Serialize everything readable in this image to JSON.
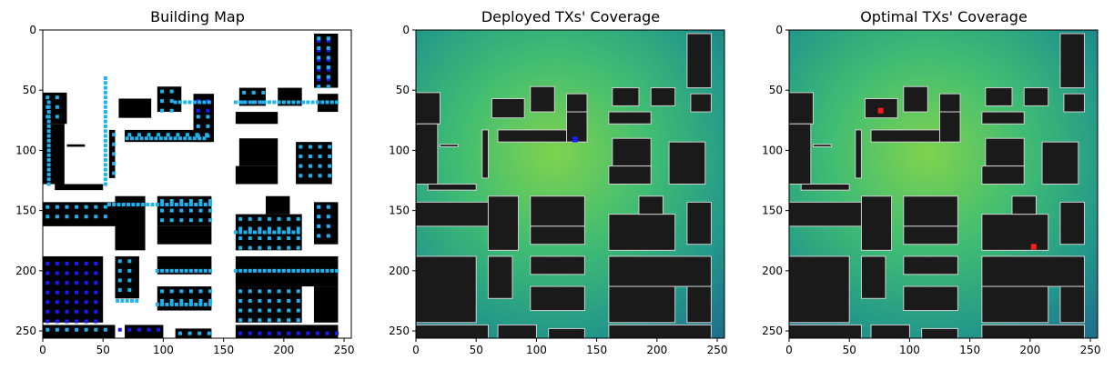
{
  "chart_data": [
    {
      "type": "heatmap",
      "title": "Building Map",
      "xlim": [
        0,
        256
      ],
      "ylim": [
        256,
        0
      ],
      "xticks": [
        0,
        50,
        100,
        150,
        200,
        250
      ],
      "yticks": [
        0,
        50,
        100,
        150,
        200,
        250
      ],
      "background_color": "#ffffff",
      "building_color": "#000000",
      "marker_colors": {
        "edge_candidates": "#1fb3f0",
        "roof_candidates": "#1a1aff"
      },
      "buildings": [
        [
          0,
          52,
          20,
          78
        ],
        [
          0,
          78,
          18,
          128
        ],
        [
          20,
          95,
          35,
          97
        ],
        [
          63,
          57,
          90,
          73
        ],
        [
          95,
          47,
          115,
          68
        ],
        [
          125,
          53,
          142,
          68
        ],
        [
          163,
          48,
          185,
          63
        ],
        [
          195,
          48,
          215,
          63
        ],
        [
          225,
          3,
          245,
          48
        ],
        [
          228,
          53,
          245,
          68
        ],
        [
          68,
          83,
          140,
          93
        ],
        [
          160,
          68,
          195,
          78
        ],
        [
          125,
          68,
          142,
          93
        ],
        [
          163,
          90,
          195,
          113
        ],
        [
          210,
          93,
          240,
          128
        ],
        [
          160,
          113,
          195,
          128
        ],
        [
          55,
          83,
          60,
          123
        ],
        [
          10,
          128,
          50,
          133
        ],
        [
          0,
          143,
          60,
          163
        ],
        [
          60,
          138,
          85,
          183
        ],
        [
          95,
          138,
          140,
          163
        ],
        [
          95,
          163,
          140,
          178
        ],
        [
          160,
          153,
          215,
          183
        ],
        [
          185,
          138,
          205,
          153
        ],
        [
          225,
          143,
          245,
          178
        ],
        [
          0,
          188,
          50,
          243
        ],
        [
          60,
          188,
          80,
          223
        ],
        [
          95,
          188,
          140,
          203
        ],
        [
          95,
          213,
          140,
          233
        ],
        [
          160,
          188,
          245,
          213
        ],
        [
          160,
          213,
          215,
          243
        ],
        [
          225,
          213,
          245,
          243
        ],
        [
          0,
          245,
          60,
          256
        ],
        [
          68,
          245,
          100,
          256
        ],
        [
          110,
          248,
          140,
          256
        ],
        [
          160,
          245,
          245,
          256
        ]
      ],
      "roof_candidate_regions": [
        [
          225,
          5,
          245,
          48
        ],
        [
          125,
          55,
          140,
          68
        ],
        [
          0,
          190,
          48,
          243
        ],
        [
          225,
          143,
          245,
          178
        ],
        [
          60,
          245,
          100,
          256
        ],
        [
          160,
          248,
          245,
          256
        ]
      ],
      "edge_candidate_lines": [
        [
          52,
          40,
          52,
          130
        ],
        [
          5,
          60,
          5,
          128
        ],
        [
          70,
          90,
          135,
          90
        ],
        [
          110,
          60,
          140,
          60
        ],
        [
          160,
          60,
          245,
          60
        ],
        [
          55,
          145,
          140,
          145
        ],
        [
          160,
          168,
          215,
          168
        ],
        [
          95,
          200,
          140,
          200
        ],
        [
          160,
          200,
          245,
          200
        ],
        [
          62,
          225,
          80,
          225
        ],
        [
          95,
          228,
          140,
          228
        ]
      ]
    },
    {
      "type": "heatmap",
      "title": "Deployed TXs' Coverage",
      "xlim": [
        0,
        256
      ],
      "ylim": [
        256,
        0
      ],
      "xticks": [
        0,
        50,
        100,
        150,
        200,
        250
      ],
      "yticks": [
        0,
        50,
        100,
        150,
        200,
        250
      ],
      "colormap": [
        "#1f6e8c",
        "#22978a",
        "#3fbc73",
        "#7fd34e"
      ],
      "building_color": "#1a1a1a",
      "outline_color": "#cfcfcf",
      "transmitters": [
        {
          "x": 132,
          "y": 91,
          "color": "#1a1aff"
        }
      ]
    },
    {
      "type": "heatmap",
      "title": "Optimal TXs' Coverage",
      "xlim": [
        0,
        256
      ],
      "ylim": [
        256,
        0
      ],
      "xticks": [
        0,
        50,
        100,
        150,
        200,
        250
      ],
      "yticks": [
        0,
        50,
        100,
        150,
        200,
        250
      ],
      "colormap": [
        "#1f6e8c",
        "#22978a",
        "#3fbc73",
        "#7fd34e"
      ],
      "building_color": "#1a1a1a",
      "outline_color": "#cfcfcf",
      "transmitters": [
        {
          "x": 76,
          "y": 67,
          "color": "#ff1a1a"
        },
        {
          "x": 203,
          "y": 180,
          "color": "#ff1a1a"
        }
      ]
    }
  ]
}
